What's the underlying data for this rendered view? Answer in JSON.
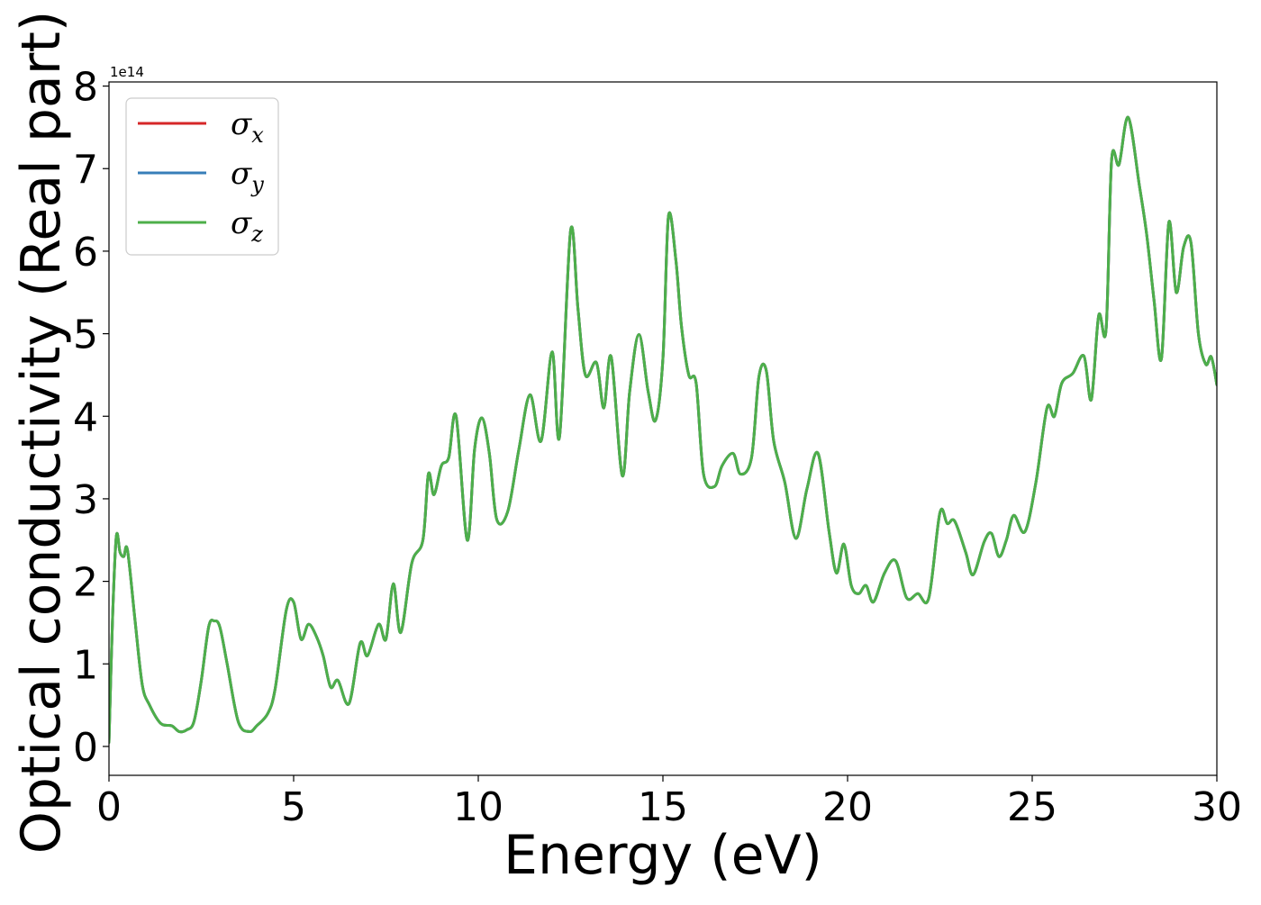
{
  "chart_data": {
    "type": "line",
    "xlabel": "Energy (eV)",
    "ylabel": "Optical conductivity (Real part)",
    "offset_text": "1e14",
    "xlim": [
      0,
      30
    ],
    "ylim": [
      -0.35,
      8.05
    ],
    "x_ticks": [
      0,
      5,
      10,
      15,
      20,
      25,
      30
    ],
    "y_ticks": [
      0,
      1,
      2,
      3,
      4,
      5,
      6,
      7,
      8
    ],
    "legend_position": "upper-left",
    "grid": false,
    "series": [
      {
        "name": "σ",
        "subscript": "x",
        "color": "#d62728"
      },
      {
        "name": "σ",
        "subscript": "y",
        "color": "#377eb8"
      },
      {
        "name": "σ",
        "subscript": "z",
        "color": "#4daf4a"
      }
    ],
    "x": [
      0,
      0.1,
      0.2,
      0.3,
      0.4,
      0.5,
      0.7,
      0.9,
      1.1,
      1.4,
      1.7,
      1.9,
      2.1,
      2.3,
      2.5,
      2.7,
      2.85,
      3.0,
      3.2,
      3.5,
      3.8,
      4.0,
      4.3,
      4.5,
      4.8,
      5.0,
      5.2,
      5.4,
      5.6,
      5.8,
      6.0,
      6.2,
      6.5,
      6.8,
      7.0,
      7.3,
      7.5,
      7.7,
      7.9,
      8.2,
      8.5,
      8.65,
      8.8,
      9.0,
      9.2,
      9.4,
      9.7,
      9.9,
      10.1,
      10.3,
      10.5,
      10.8,
      11.1,
      11.4,
      11.7,
      12.0,
      12.2,
      12.5,
      12.7,
      12.9,
      13.2,
      13.4,
      13.6,
      13.9,
      14.1,
      14.35,
      14.6,
      14.8,
      15.0,
      15.15,
      15.35,
      15.5,
      15.7,
      15.9,
      16.1,
      16.4,
      16.6,
      16.9,
      17.1,
      17.4,
      17.6,
      17.8,
      18.0,
      18.3,
      18.6,
      18.9,
      19.2,
      19.5,
      19.7,
      19.9,
      20.1,
      20.3,
      20.5,
      20.7,
      21.0,
      21.3,
      21.6,
      21.9,
      22.2,
      22.5,
      22.7,
      22.9,
      23.2,
      23.4,
      23.7,
      23.9,
      24.1,
      24.3,
      24.5,
      24.8,
      25.1,
      25.4,
      25.6,
      25.8,
      26.1,
      26.4,
      26.6,
      26.8,
      27.0,
      27.15,
      27.35,
      27.6,
      27.9,
      28.1,
      28.3,
      28.5,
      28.7,
      28.9,
      29.1,
      29.3,
      29.5,
      29.7,
      29.85,
      30.0
    ],
    "y": [
      0.05,
      1.6,
      2.55,
      2.35,
      2.3,
      2.38,
      1.55,
      0.75,
      0.5,
      0.28,
      0.25,
      0.18,
      0.2,
      0.3,
      0.8,
      1.45,
      1.52,
      1.45,
      1.0,
      0.3,
      0.18,
      0.25,
      0.4,
      0.7,
      1.65,
      1.75,
      1.3,
      1.48,
      1.35,
      1.1,
      0.72,
      0.8,
      0.52,
      1.25,
      1.1,
      1.48,
      1.3,
      1.97,
      1.38,
      2.22,
      2.5,
      3.3,
      3.05,
      3.4,
      3.5,
      4.0,
      2.5,
      3.6,
      3.98,
      3.55,
      2.75,
      2.85,
      3.6,
      4.26,
      3.7,
      4.78,
      3.75,
      6.25,
      5.3,
      4.5,
      4.65,
      4.1,
      4.72,
      3.28,
      4.3,
      4.99,
      4.3,
      3.95,
      4.7,
      6.42,
      5.9,
      5.1,
      4.5,
      4.4,
      3.3,
      3.15,
      3.4,
      3.55,
      3.3,
      3.5,
      4.48,
      4.55,
      3.7,
      3.2,
      2.52,
      3.12,
      3.55,
      2.6,
      2.1,
      2.45,
      1.95,
      1.85,
      1.95,
      1.75,
      2.1,
      2.25,
      1.8,
      1.85,
      1.8,
      2.83,
      2.7,
      2.73,
      2.35,
      2.08,
      2.48,
      2.58,
      2.3,
      2.5,
      2.8,
      2.6,
      3.2,
      4.1,
      4.0,
      4.4,
      4.52,
      4.73,
      4.2,
      5.22,
      5.05,
      7.1,
      7.05,
      7.62,
      6.8,
      6.2,
      5.4,
      4.7,
      6.35,
      5.5,
      6.05,
      6.1,
      5.0,
      4.63,
      4.72,
      4.38
    ]
  }
}
